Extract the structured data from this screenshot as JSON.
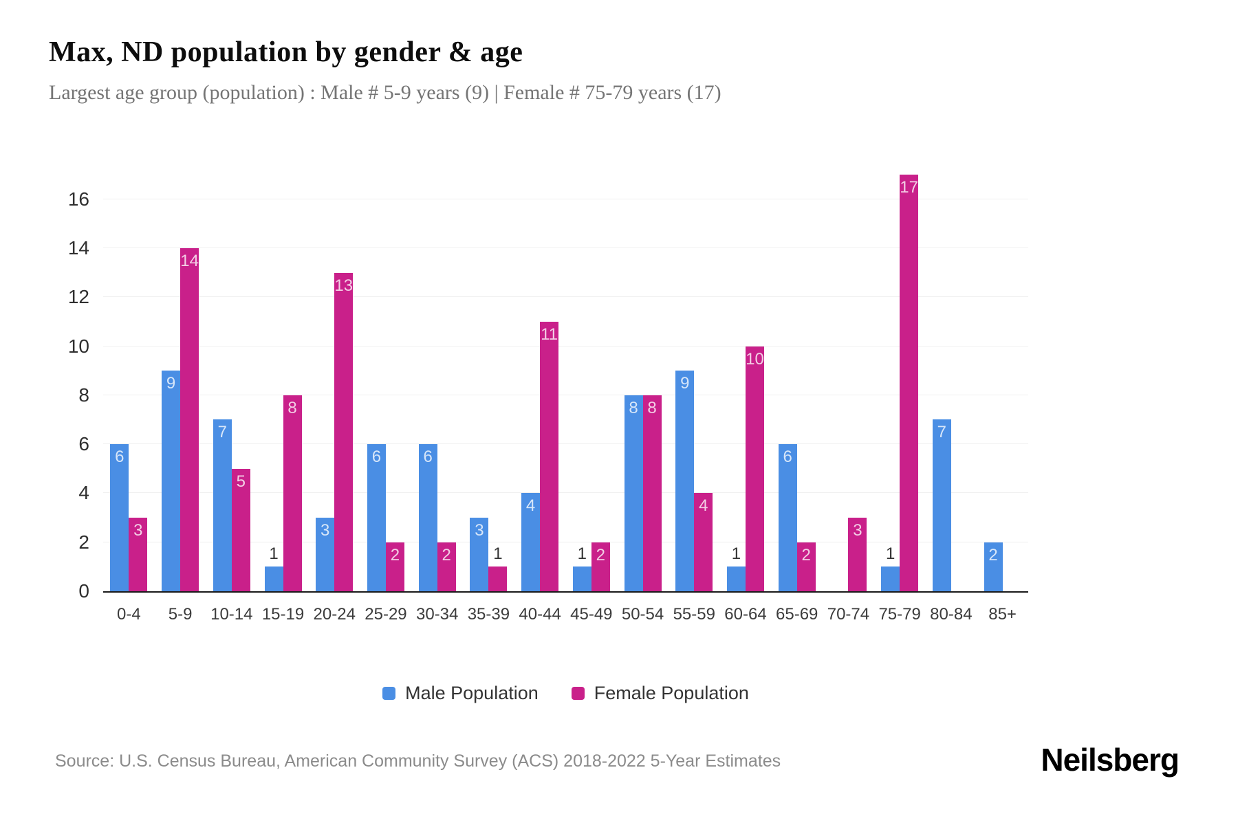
{
  "header": {
    "title": "Max, ND population by gender & age",
    "subtitle": "Largest age group (population) : Male # 5-9 years (9) | Female # 75-79 years (17)"
  },
  "chart_data": {
    "type": "bar",
    "title": "Max, ND population by gender & age",
    "categories": [
      "0-4",
      "5-9",
      "10-14",
      "15-19",
      "20-24",
      "25-29",
      "30-34",
      "35-39",
      "40-44",
      "45-49",
      "50-54",
      "55-59",
      "60-64",
      "65-69",
      "70-74",
      "75-79",
      "80-84",
      "85+"
    ],
    "series": [
      {
        "name": "Male Population",
        "color": "#4a8ee4",
        "values": [
          6,
          9,
          7,
          1,
          3,
          6,
          6,
          3,
          4,
          1,
          8,
          9,
          1,
          6,
          0,
          1,
          7,
          2
        ]
      },
      {
        "name": "Female Population",
        "color": "#c9208a",
        "values": [
          3,
          14,
          5,
          8,
          13,
          2,
          2,
          1,
          11,
          2,
          8,
          4,
          10,
          2,
          3,
          17,
          0,
          0
        ]
      }
    ],
    "xlabel": "",
    "ylabel": "",
    "ylim": [
      0,
      17
    ],
    "yticks": [
      0,
      2,
      4,
      6,
      8,
      10,
      12,
      14,
      16
    ],
    "grid": true,
    "legend_position": "bottom",
    "label_colors": {
      "inside": "rgba(255,255,255,0.78)",
      "above": "#333333"
    }
  },
  "footer": {
    "source": "Source: U.S. Census Bureau, American Community Survey (ACS) 2018-2022 5-Year Estimates",
    "brand": "Neilsberg"
  }
}
